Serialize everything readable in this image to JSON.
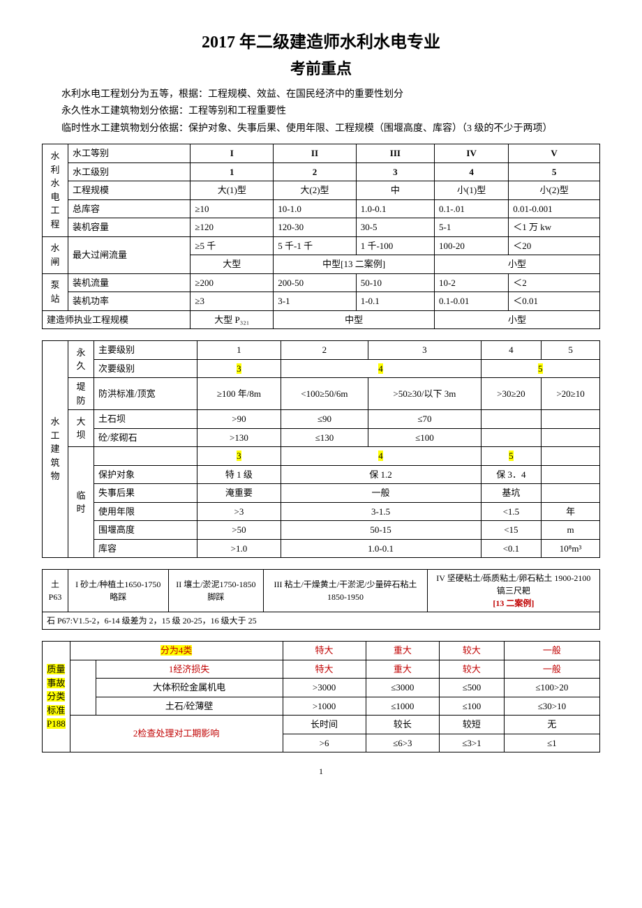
{
  "title_line1": "2017 年二级建造师水利水电专业",
  "title_line2": "考前重点",
  "intro": {
    "p1": "水利水电工程划分为五等，根据：工程规模、效益、在国民经济中的重要性划分",
    "p2": "永久性水工建筑物划分依据：工程等别和工程重要性",
    "p3": "临时性水工建筑物划分依据：保护对象、失事后果、使用年限、工程规模（围堰高度、库容）（3 级的不少于两项）"
  },
  "t1": {
    "rowhead_group": "水利水电工程",
    "r1": {
      "label": "水工等别",
      "c": [
        "I",
        "II",
        "III",
        "IV",
        "V"
      ]
    },
    "r2": {
      "label": "水工级别",
      "c": [
        "1",
        "2",
        "3",
        "4",
        "5"
      ]
    },
    "r3": {
      "label": "工程规模",
      "c": [
        "大(1)型",
        "大(2)型",
        "中",
        "小(1)型",
        "小(2)型"
      ]
    },
    "r4": {
      "label": "总库容",
      "c": [
        "≥10",
        "10-1.0",
        "1.0-0.1",
        "0.1-.01",
        "0.01-0.001"
      ]
    },
    "r5": {
      "label": "装机容量",
      "c": [
        "≥120",
        "120-30",
        "30-5",
        "5-1",
        "＜1 万 kw"
      ]
    },
    "shuizha_label": "水闸",
    "r6": {
      "label": "最大过闸流量",
      "c": [
        "≥5 千",
        "5 千-1 千",
        "1 千-100",
        "100-20",
        "＜20"
      ]
    },
    "r7": {
      "c": [
        "大型",
        "中型[13 二案例]",
        "小型"
      ]
    },
    "bengzhan_label": "泵站",
    "r8": {
      "label": "装机流量",
      "c": [
        "≥200",
        "200-50",
        "50-10",
        "10-2",
        "＜2"
      ]
    },
    "r9": {
      "label": "装机功率",
      "c": [
        "≥3",
        "3-1",
        "1-0.1",
        "0.1-0.01",
        "＜0.01"
      ]
    },
    "r10": {
      "label": "建造师执业工程规模",
      "c": [
        "大型 P₃₂₁",
        "中型",
        "小型"
      ]
    }
  },
  "t2": {
    "vcol": "水工建筑物",
    "yong": "永久",
    "r1": {
      "label": "主要级别",
      "c": [
        "1",
        "2",
        "3",
        "4",
        "5"
      ]
    },
    "r2": {
      "label": "次要级别",
      "c": [
        "3",
        "4",
        "5"
      ]
    },
    "difang": "堤防",
    "r3": {
      "label": "防洪标准/顶宽",
      "c": [
        "≥100 年/8m",
        "<100≥50/6m",
        ">50≥30/以下 3m",
        ">30≥20",
        ">20≥10"
      ]
    },
    "daba": "大坝",
    "r4": {
      "label": "土石坝",
      "c": [
        ">90",
        "≤90",
        "≤70",
        "",
        ""
      ]
    },
    "r5": {
      "label": "砼/浆砌石",
      "c": [
        ">130",
        "≤130",
        "≤100",
        "",
        ""
      ]
    },
    "lin_header": {
      "c": [
        "3",
        "4",
        "5",
        ""
      ]
    },
    "linshi": "临时",
    "r6": {
      "label": "保护对象",
      "c": [
        "特 1 级",
        "保 1.2",
        "保 3．4",
        ""
      ]
    },
    "r7": {
      "label": "失事后果",
      "c": [
        "淹重要",
        "一般",
        "基坑",
        ""
      ]
    },
    "r8": {
      "label": "使用年限",
      "c": [
        ">3",
        "3-1.5",
        "<1.5",
        "年"
      ]
    },
    "r9": {
      "label": "围堰高度",
      "c": [
        ">50",
        "50-15",
        "<15",
        "m"
      ]
    },
    "r10": {
      "label": "库容",
      "c": [
        ">1.0",
        "1.0-0.1",
        "<0.1",
        "10⁸m³"
      ]
    }
  },
  "t3": {
    "left_label": "土P63",
    "c1": "I 砂土/种植土1650-1750 略踩",
    "c2": "II 壤土/淤泥1750-1850 脚踩",
    "c3": "III 粘土/干燥黄土/干淤泥/少量碎石粘土1850-1950",
    "c4_l1": "IV 坚硬粘土/砾质粘土/卵石粘土 1900-2100 镐三尺耙",
    "c4_l2": "[13 二案例]",
    "note": "石 P67:V1.5-2，6-14 级差为 2，15 级 20-25，16 级大于 25"
  },
  "t4": {
    "side1": "质量",
    "side2": "事故",
    "side3": "分类",
    "side4": "标准",
    "side5": "P188",
    "r1": {
      "label": "分为4类",
      "c": [
        "特大",
        "重大",
        "较大",
        "一般"
      ]
    },
    "r2": {
      "label": "1经济损失",
      "c": [
        "特大",
        "重大",
        "较大",
        "一般"
      ]
    },
    "r3": {
      "label": "大体积砼金属机电",
      "c": [
        ">3000",
        "≤3000",
        "≤500",
        "≤100>20"
      ]
    },
    "r4": {
      "label": "土石/砼薄壁",
      "c": [
        ">1000",
        "≤1000",
        "≤100",
        "≤30>10"
      ]
    },
    "r5": {
      "label": "2检查处理对工期影响",
      "c": [
        "长时间",
        "较长",
        "较短",
        "无"
      ]
    },
    "r6": {
      "c": [
        ">6",
        "≤6>3",
        "≤3>1",
        "≤1"
      ]
    }
  },
  "page_number": "1"
}
